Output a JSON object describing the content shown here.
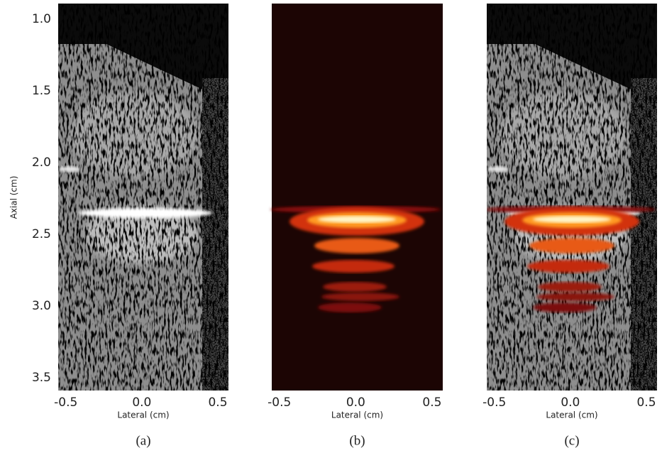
{
  "chart_data": [
    {
      "type": "image",
      "x_label": "Lateral (cm)",
      "y_label": "Axial (cm)",
      "caption": "(a)",
      "xlim": [
        -0.55,
        0.57
      ],
      "xticks": [
        -0.5,
        {
          "value": 0,
          "label": "0.0"
        },
        0.5
      ],
      "ylim": [
        0.89,
        3.59
      ],
      "yticks": [
        {
          "value": 1,
          "label": "1.0"
        },
        1.5,
        {
          "value": 2,
          "label": "2.0"
        },
        2.5,
        {
          "value": 3,
          "label": "3.0"
        },
        3.5
      ]
    },
    {
      "type": "image",
      "x_label": "Lateral (cm)",
      "caption": "(b)",
      "xlim": [
        -0.55,
        0.57
      ],
      "xticks": [
        -0.5,
        {
          "value": 0,
          "label": "0.0"
        },
        0.5
      ]
    },
    {
      "type": "image",
      "x_label": "Lateral (cm)",
      "caption": "(c)",
      "xlim": [
        -0.55,
        0.57
      ],
      "xticks": [
        -0.5,
        {
          "value": 0,
          "label": "0.0"
        },
        0.5
      ]
    }
  ]
}
